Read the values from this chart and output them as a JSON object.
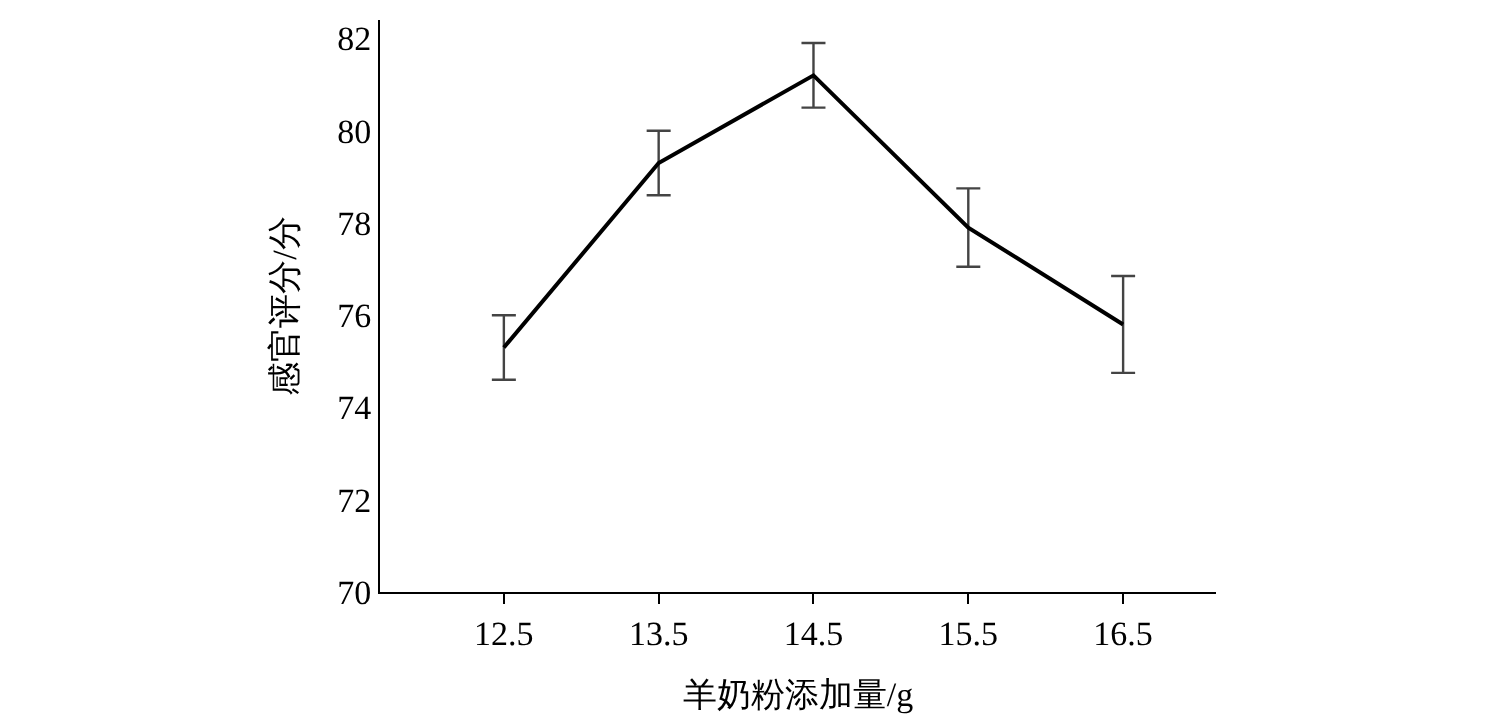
{
  "chart_data": {
    "type": "line",
    "xlabel": "羊奶粉添加量/g",
    "ylabel": "感官评分/分",
    "x": [
      12.5,
      13.5,
      14.5,
      15.5,
      16.5
    ],
    "series": [
      {
        "color": "#000000",
        "values": [
          75.3,
          79.3,
          81.2,
          77.9,
          75.8
        ],
        "errors": [
          0.7,
          0.7,
          0.7,
          0.85,
          1.05
        ]
      }
    ],
    "xlim": [
      11.7,
      17.1
    ],
    "xticks": [
      12.5,
      13.5,
      14.5,
      15.5,
      16.5
    ],
    "ylim": [
      70,
      82.4
    ],
    "yticks": [
      70,
      72,
      74,
      76,
      78,
      80,
      82
    ],
    "marker": "none",
    "line_style": "solid"
  }
}
